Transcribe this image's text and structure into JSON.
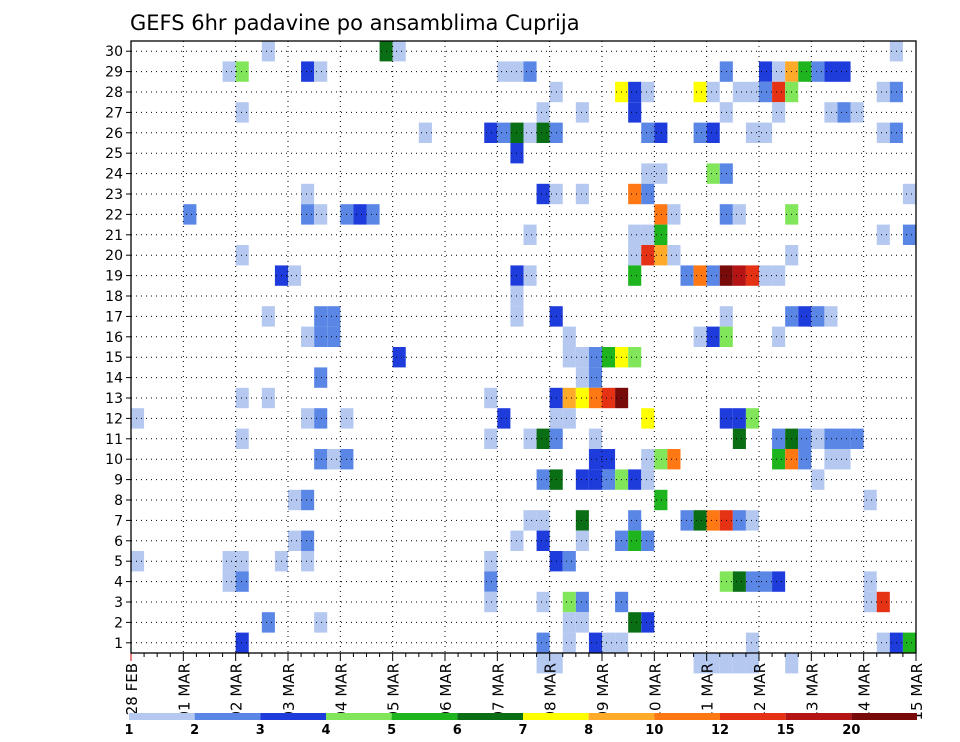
{
  "chart_data": {
    "type": "heatmap",
    "title": "GEFS 6hr padavine po ansamblima Cuprija",
    "xlabel": "",
    "ylabel": "",
    "x_tick_labels": [
      "28 FEB",
      "01 MAR",
      "02 MAR",
      "03 MAR",
      "04 MAR",
      "05 MAR",
      "06 MAR",
      "07 MAR",
      "08 MAR",
      "09 MAR",
      "10 MAR",
      "11 MAR",
      "12 MAR",
      "13 MAR",
      "14 MAR",
      "15 MAR"
    ],
    "x_unit": "6-hour step from 28 FEB 00Z (4 steps per day)",
    "xlim": [
      0,
      60
    ],
    "y_members": [
      1,
      30
    ],
    "ylim": [
      0.5,
      30.5
    ],
    "grid": true,
    "legend_position": "bottom",
    "colorbar": {
      "labels": [
        "1",
        "2",
        "3",
        "4",
        "5",
        "6",
        "7",
        "8",
        "10",
        "12",
        "15",
        "20"
      ],
      "colors": [
        "#b4c8f0",
        "#5a87e6",
        "#1e3cdc",
        "#82e65a",
        "#1eb41e",
        "#0a6e14",
        "#ffff00",
        "#ffaa28",
        "#ff7814",
        "#e63214",
        "#b41414",
        "#780a0a"
      ]
    },
    "cells": [
      [
        30,
        10,
        "c0"
      ],
      [
        30,
        19,
        "c5"
      ],
      [
        30,
        20,
        "c0"
      ],
      [
        30,
        58,
        "c0"
      ],
      [
        29,
        7,
        "c0"
      ],
      [
        29,
        8,
        "c3"
      ],
      [
        29,
        13,
        "c2"
      ],
      [
        29,
        14,
        "c0"
      ],
      [
        29,
        28,
        "c0"
      ],
      [
        29,
        29,
        "c0"
      ],
      [
        29,
        30,
        "c1"
      ],
      [
        29,
        45,
        "c1"
      ],
      [
        29,
        48,
        "c2"
      ],
      [
        29,
        49,
        "c0"
      ],
      [
        29,
        50,
        "c7"
      ],
      [
        29,
        51,
        "c4"
      ],
      [
        29,
        52,
        "c1"
      ],
      [
        29,
        53,
        "c2"
      ],
      [
        29,
        54,
        "c2"
      ],
      [
        28,
        32,
        "c0"
      ],
      [
        28,
        37,
        "c6"
      ],
      [
        28,
        38,
        "c2"
      ],
      [
        28,
        39,
        "c0"
      ],
      [
        28,
        43,
        "c6"
      ],
      [
        28,
        44,
        "c0"
      ],
      [
        28,
        46,
        "c0"
      ],
      [
        28,
        47,
        "c0"
      ],
      [
        28,
        48,
        "c1"
      ],
      [
        28,
        49,
        "c9"
      ],
      [
        28,
        50,
        "c3"
      ],
      [
        28,
        57,
        "c0"
      ],
      [
        28,
        58,
        "c1"
      ],
      [
        27,
        8,
        "c0"
      ],
      [
        27,
        31,
        "c0"
      ],
      [
        27,
        34,
        "c0"
      ],
      [
        27,
        38,
        "c2"
      ],
      [
        27,
        45,
        "c0"
      ],
      [
        27,
        49,
        "c0"
      ],
      [
        27,
        53,
        "c0"
      ],
      [
        27,
        54,
        "c1"
      ],
      [
        27,
        55,
        "c0"
      ],
      [
        26,
        22,
        "c0"
      ],
      [
        26,
        27,
        "c2"
      ],
      [
        26,
        28,
        "c1"
      ],
      [
        26,
        29,
        "c5"
      ],
      [
        26,
        30,
        "c0"
      ],
      [
        26,
        31,
        "c5"
      ],
      [
        26,
        32,
        "c1"
      ],
      [
        26,
        39,
        "c1"
      ],
      [
        26,
        40,
        "c2"
      ],
      [
        26,
        43,
        "c1"
      ],
      [
        26,
        44,
        "c2"
      ],
      [
        26,
        47,
        "c0"
      ],
      [
        26,
        48,
        "c0"
      ],
      [
        26,
        57,
        "c0"
      ],
      [
        26,
        58,
        "c1"
      ],
      [
        25,
        29,
        "c2"
      ],
      [
        24,
        39,
        "c0"
      ],
      [
        24,
        40,
        "c0"
      ],
      [
        24,
        44,
        "c3"
      ],
      [
        24,
        45,
        "c1"
      ],
      [
        23,
        13,
        "c0"
      ],
      [
        23,
        31,
        "c2"
      ],
      [
        23,
        32,
        "c0"
      ],
      [
        23,
        34,
        "c0"
      ],
      [
        23,
        38,
        "c8"
      ],
      [
        23,
        39,
        "c1"
      ],
      [
        23,
        59,
        "c0"
      ],
      [
        22,
        4,
        "c1"
      ],
      [
        22,
        13,
        "c1"
      ],
      [
        22,
        14,
        "c0"
      ],
      [
        22,
        16,
        "c1"
      ],
      [
        22,
        17,
        "c2"
      ],
      [
        22,
        18,
        "c1"
      ],
      [
        22,
        40,
        "c8"
      ],
      [
        22,
        41,
        "c0"
      ],
      [
        22,
        45,
        "c1"
      ],
      [
        22,
        46,
        "c0"
      ],
      [
        22,
        50,
        "c3"
      ],
      [
        21,
        30,
        "c0"
      ],
      [
        21,
        38,
        "c0"
      ],
      [
        21,
        39,
        "c0"
      ],
      [
        21,
        40,
        "c4"
      ],
      [
        21,
        57,
        "c0"
      ],
      [
        21,
        59,
        "c1"
      ],
      [
        20,
        8,
        "c0"
      ],
      [
        20,
        38,
        "c0"
      ],
      [
        20,
        39,
        "c9"
      ],
      [
        20,
        40,
        "c7"
      ],
      [
        20,
        41,
        "c0"
      ],
      [
        20,
        50,
        "c0"
      ],
      [
        19,
        11,
        "c2"
      ],
      [
        19,
        12,
        "c0"
      ],
      [
        19,
        29,
        "c2"
      ],
      [
        19,
        30,
        "c0"
      ],
      [
        19,
        38,
        "c4"
      ],
      [
        19,
        42,
        "c1"
      ],
      [
        19,
        43,
        "c8"
      ],
      [
        19,
        44,
        "c1"
      ],
      [
        19,
        45,
        "c11"
      ],
      [
        19,
        46,
        "c10"
      ],
      [
        19,
        47,
        "c9"
      ],
      [
        19,
        48,
        "c0"
      ],
      [
        19,
        49,
        "c0"
      ],
      [
        18,
        29,
        "c0"
      ],
      [
        17,
        10,
        "c0"
      ],
      [
        17,
        14,
        "c1"
      ],
      [
        17,
        15,
        "c1"
      ],
      [
        17,
        29,
        "c0"
      ],
      [
        17,
        32,
        "c2"
      ],
      [
        17,
        45,
        "c0"
      ],
      [
        17,
        50,
        "c1"
      ],
      [
        17,
        51,
        "c2"
      ],
      [
        17,
        52,
        "c1"
      ],
      [
        17,
        53,
        "c0"
      ],
      [
        16,
        13,
        "c0"
      ],
      [
        16,
        14,
        "c1"
      ],
      [
        16,
        15,
        "c1"
      ],
      [
        16,
        33,
        "c0"
      ],
      [
        16,
        43,
        "c0"
      ],
      [
        16,
        44,
        "c2"
      ],
      [
        16,
        45,
        "c3"
      ],
      [
        16,
        49,
        "c0"
      ],
      [
        15,
        20,
        "c2"
      ],
      [
        15,
        33,
        "c0"
      ],
      [
        15,
        34,
        "c0"
      ],
      [
        15,
        35,
        "c1"
      ],
      [
        15,
        36,
        "c4"
      ],
      [
        15,
        37,
        "c6"
      ],
      [
        15,
        38,
        "c3"
      ],
      [
        14,
        14,
        "c1"
      ],
      [
        14,
        34,
        "c0"
      ],
      [
        14,
        35,
        "c1"
      ],
      [
        13,
        8,
        "c0"
      ],
      [
        13,
        10,
        "c0"
      ],
      [
        13,
        27,
        "c0"
      ],
      [
        13,
        32,
        "c2"
      ],
      [
        13,
        33,
        "c7"
      ],
      [
        13,
        34,
        "c6"
      ],
      [
        13,
        35,
        "c8"
      ],
      [
        13,
        36,
        "c9"
      ],
      [
        13,
        37,
        "c11"
      ],
      [
        13,
        60,
        "c2"
      ],
      [
        12,
        0,
        "c0"
      ],
      [
        12,
        13,
        "c0"
      ],
      [
        12,
        14,
        "c1"
      ],
      [
        12,
        16,
        "c0"
      ],
      [
        12,
        28,
        "c2"
      ],
      [
        12,
        32,
        "c0"
      ],
      [
        12,
        33,
        "c0"
      ],
      [
        12,
        39,
        "c6"
      ],
      [
        12,
        45,
        "c2"
      ],
      [
        12,
        46,
        "c2"
      ],
      [
        12,
        47,
        "c3"
      ],
      [
        12,
        60,
        "c5"
      ],
      [
        11,
        8,
        "c0"
      ],
      [
        11,
        27,
        "c0"
      ],
      [
        11,
        30,
        "c0"
      ],
      [
        11,
        31,
        "c5"
      ],
      [
        11,
        32,
        "c1"
      ],
      [
        11,
        35,
        "c0"
      ],
      [
        11,
        46,
        "c5"
      ],
      [
        11,
        49,
        "c1"
      ],
      [
        11,
        50,
        "c5"
      ],
      [
        11,
        51,
        "c1"
      ],
      [
        11,
        52,
        "c0"
      ],
      [
        11,
        53,
        "c1"
      ],
      [
        11,
        54,
        "c1"
      ],
      [
        11,
        55,
        "c1"
      ],
      [
        10,
        14,
        "c1"
      ],
      [
        10,
        15,
        "c0"
      ],
      [
        10,
        16,
        "c1"
      ],
      [
        10,
        35,
        "c2"
      ],
      [
        10,
        36,
        "c2"
      ],
      [
        10,
        39,
        "c0"
      ],
      [
        10,
        40,
        "c3"
      ],
      [
        10,
        41,
        "c8"
      ],
      [
        10,
        49,
        "c4"
      ],
      [
        10,
        50,
        "c8"
      ],
      [
        10,
        51,
        "c1"
      ],
      [
        10,
        53,
        "c0"
      ],
      [
        10,
        54,
        "c0"
      ],
      [
        9,
        31,
        "c1"
      ],
      [
        9,
        32,
        "c5"
      ],
      [
        9,
        34,
        "c2"
      ],
      [
        9,
        35,
        "c2"
      ],
      [
        9,
        36,
        "c1"
      ],
      [
        9,
        37,
        "c3"
      ],
      [
        9,
        38,
        "c2"
      ],
      [
        9,
        39,
        "c0"
      ],
      [
        9,
        52,
        "c0"
      ],
      [
        8,
        12,
        "c0"
      ],
      [
        8,
        13,
        "c1"
      ],
      [
        8,
        40,
        "c4"
      ],
      [
        8,
        56,
        "c0"
      ],
      [
        7,
        30,
        "c0"
      ],
      [
        7,
        31,
        "c0"
      ],
      [
        7,
        34,
        "c5"
      ],
      [
        7,
        38,
        "c1"
      ],
      [
        7,
        42,
        "c1"
      ],
      [
        7,
        43,
        "c5"
      ],
      [
        7,
        44,
        "c8"
      ],
      [
        7,
        45,
        "c9"
      ],
      [
        7,
        46,
        "c1"
      ],
      [
        7,
        47,
        "c0"
      ],
      [
        6,
        12,
        "c0"
      ],
      [
        6,
        13,
        "c1"
      ],
      [
        6,
        29,
        "c0"
      ],
      [
        6,
        31,
        "c2"
      ],
      [
        6,
        34,
        "c0"
      ],
      [
        6,
        37,
        "c1"
      ],
      [
        6,
        38,
        "c4"
      ],
      [
        6,
        39,
        "c1"
      ],
      [
        5,
        0,
        "c0"
      ],
      [
        5,
        7,
        "c0"
      ],
      [
        5,
        8,
        "c0"
      ],
      [
        5,
        11,
        "c0"
      ],
      [
        5,
        13,
        "c0"
      ],
      [
        5,
        27,
        "c0"
      ],
      [
        5,
        32,
        "c2"
      ],
      [
        5,
        33,
        "c1"
      ],
      [
        4,
        7,
        "c0"
      ],
      [
        4,
        8,
        "c1"
      ],
      [
        4,
        27,
        "c1"
      ],
      [
        4,
        45,
        "c3"
      ],
      [
        4,
        46,
        "c5"
      ],
      [
        4,
        47,
        "c1"
      ],
      [
        4,
        48,
        "c1"
      ],
      [
        4,
        49,
        "c2"
      ],
      [
        4,
        56,
        "c0"
      ],
      [
        3,
        27,
        "c0"
      ],
      [
        3,
        31,
        "c0"
      ],
      [
        3,
        33,
        "c3"
      ],
      [
        3,
        34,
        "c1"
      ],
      [
        3,
        37,
        "c1"
      ],
      [
        3,
        56,
        "c0"
      ],
      [
        3,
        57,
        "c9"
      ],
      [
        2,
        10,
        "c1"
      ],
      [
        2,
        14,
        "c0"
      ],
      [
        2,
        33,
        "c0"
      ],
      [
        2,
        34,
        "c0"
      ],
      [
        2,
        38,
        "c5"
      ],
      [
        2,
        39,
        "c2"
      ],
      [
        1,
        8,
        "c2"
      ],
      [
        1,
        31,
        "c1"
      ],
      [
        1,
        33,
        "c0"
      ],
      [
        1,
        35,
        "c2"
      ],
      [
        1,
        36,
        "c0"
      ],
      [
        1,
        37,
        "c0"
      ],
      [
        1,
        47,
        "c0"
      ],
      [
        1,
        57,
        "c0"
      ],
      [
        1,
        58,
        "c2"
      ],
      [
        1,
        59,
        "c4"
      ],
      [
        1,
        60,
        "c11"
      ],
      [
        0,
        31,
        "c0"
      ],
      [
        0,
        32,
        "c0"
      ],
      [
        0,
        43,
        "c0"
      ],
      [
        0,
        44,
        "c0"
      ],
      [
        0,
        45,
        "c0"
      ],
      [
        0,
        46,
        "c0"
      ],
      [
        0,
        47,
        "c0"
      ],
      [
        0,
        50,
        "c0"
      ]
    ]
  }
}
